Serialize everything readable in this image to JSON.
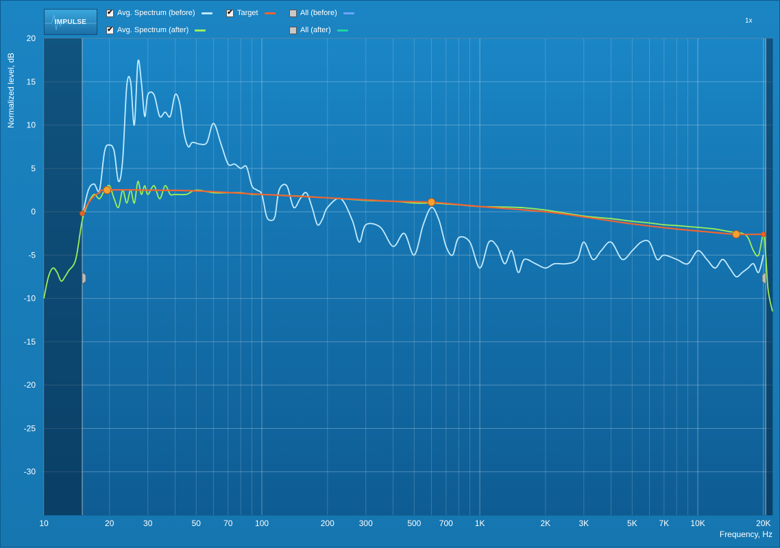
{
  "toolbar": {
    "impulse_label": "IMPULSE",
    "zoom_label": "1x",
    "legend": [
      {
        "label": "Avg. Spectrum (before)",
        "checked": true,
        "color": "#bfe9ff"
      },
      {
        "label": "Target",
        "checked": true,
        "color": "#f06432"
      },
      {
        "label": "All (before)",
        "checked": false,
        "color": "#6aa6ff"
      },
      {
        "label": "Avg. Spectrum (after)",
        "checked": true,
        "color": "#9cf05a"
      },
      {
        "label": "All (after)",
        "checked": false,
        "color": "#1fd6a0"
      }
    ]
  },
  "chart_data": {
    "type": "line",
    "xlabel": "Frequency, Hz",
    "ylabel": "Normalized level, dB",
    "x_scale": "log",
    "xlim": [
      10,
      22000
    ],
    "ylim": [
      -35,
      20
    ],
    "grid": true,
    "x_ticks": [
      {
        "value": 10,
        "label": "10"
      },
      {
        "value": 20,
        "label": "20"
      },
      {
        "value": 30,
        "label": "30"
      },
      {
        "value": 50,
        "label": "50"
      },
      {
        "value": 70,
        "label": "70"
      },
      {
        "value": 100,
        "label": "100"
      },
      {
        "value": 200,
        "label": "200"
      },
      {
        "value": 300,
        "label": "300"
      },
      {
        "value": 500,
        "label": "500"
      },
      {
        "value": 700,
        "label": "700"
      },
      {
        "value": 1000,
        "label": "1K"
      },
      {
        "value": 2000,
        "label": "2K"
      },
      {
        "value": 3000,
        "label": "3K"
      },
      {
        "value": 5000,
        "label": "5K"
      },
      {
        "value": 7000,
        "label": "7K"
      },
      {
        "value": 10000,
        "label": "10K"
      },
      {
        "value": 20000,
        "label": "20K"
      }
    ],
    "y_ticks": [
      20,
      15,
      10,
      5,
      0,
      -5,
      -10,
      -15,
      -20,
      -25,
      -30
    ],
    "excluded_band_low": [
      10,
      15
    ],
    "excluded_band_high_hz": 20500,
    "series": [
      {
        "name": "Avg. Spectrum (before)",
        "color": "#c4ecff",
        "points": [
          [
            15,
            -0.5
          ],
          [
            16,
            2.5
          ],
          [
            17,
            3.2
          ],
          [
            18,
            2.5
          ],
          [
            19,
            7.0
          ],
          [
            20,
            7.7
          ],
          [
            21,
            7.0
          ],
          [
            22,
            3.5
          ],
          [
            23,
            6.0
          ],
          [
            24,
            14.5
          ],
          [
            25,
            15.0
          ],
          [
            26,
            10.0
          ],
          [
            27,
            17.3
          ],
          [
            28,
            15.0
          ],
          [
            29,
            11.0
          ],
          [
            30,
            13.5
          ],
          [
            32,
            13.5
          ],
          [
            34,
            11.0
          ],
          [
            36,
            11.5
          ],
          [
            38,
            11.0
          ],
          [
            40,
            13.5
          ],
          [
            42,
            12.5
          ],
          [
            44,
            9.0
          ],
          [
            46,
            7.5
          ],
          [
            48,
            8.0
          ],
          [
            52,
            7.8
          ],
          [
            56,
            8.0
          ],
          [
            60,
            10.2
          ],
          [
            65,
            7.8
          ],
          [
            70,
            5.5
          ],
          [
            75,
            5.5
          ],
          [
            80,
            5.0
          ],
          [
            85,
            5.2
          ],
          [
            90,
            3.0
          ],
          [
            95,
            2.5
          ],
          [
            100,
            2.0
          ],
          [
            105,
            -0.5
          ],
          [
            110,
            -1.0
          ],
          [
            115,
            -0.5
          ],
          [
            120,
            2.5
          ],
          [
            130,
            3.0
          ],
          [
            140,
            0.5
          ],
          [
            150,
            1.5
          ],
          [
            160,
            2.2
          ],
          [
            170,
            0.5
          ],
          [
            180,
            -1.5
          ],
          [
            190,
            -0.8
          ],
          [
            200,
            0.5
          ],
          [
            230,
            1.5
          ],
          [
            260,
            -1.0
          ],
          [
            280,
            -3.5
          ],
          [
            300,
            -1.5
          ],
          [
            350,
            -1.8
          ],
          [
            400,
            -4.0
          ],
          [
            450,
            -2.5
          ],
          [
            500,
            -5.0
          ],
          [
            550,
            -1.5
          ],
          [
            600,
            0.5
          ],
          [
            650,
            -1.0
          ],
          [
            700,
            -4.0
          ],
          [
            750,
            -5.0
          ],
          [
            800,
            -3.0
          ],
          [
            900,
            -3.5
          ],
          [
            1000,
            -6.5
          ],
          [
            1100,
            -3.5
          ],
          [
            1200,
            -4.0
          ],
          [
            1300,
            -6.0
          ],
          [
            1400,
            -4.5
          ],
          [
            1500,
            -7.0
          ],
          [
            1600,
            -5.5
          ],
          [
            1800,
            -6.0
          ],
          [
            2000,
            -6.5
          ],
          [
            2200,
            -6.0
          ],
          [
            2500,
            -6.0
          ],
          [
            2800,
            -5.5
          ],
          [
            3000,
            -3.5
          ],
          [
            3300,
            -5.5
          ],
          [
            3600,
            -4.5
          ],
          [
            4000,
            -3.5
          ],
          [
            4500,
            -5.5
          ],
          [
            5000,
            -4.5
          ],
          [
            5500,
            -3.5
          ],
          [
            6000,
            -3.5
          ],
          [
            6500,
            -5.5
          ],
          [
            7000,
            -5.0
          ],
          [
            8000,
            -5.5
          ],
          [
            9000,
            -6.0
          ],
          [
            10000,
            -4.5
          ],
          [
            11000,
            -5.5
          ],
          [
            12000,
            -6.5
          ],
          [
            13000,
            -5.5
          ],
          [
            14000,
            -6.5
          ],
          [
            15000,
            -7.5
          ],
          [
            16000,
            -7.0
          ],
          [
            17000,
            -6.5
          ],
          [
            18000,
            -6.0
          ],
          [
            19000,
            -7.0
          ],
          [
            20000,
            -5.0
          ]
        ]
      },
      {
        "name": "Avg. Spectrum (after)",
        "color": "#9cf05a",
        "points": [
          [
            10,
            -10.0
          ],
          [
            10.5,
            -7.5
          ],
          [
            11,
            -6.5
          ],
          [
            11.5,
            -7.0
          ],
          [
            12,
            -8.0
          ],
          [
            12.5,
            -7.5
          ],
          [
            13,
            -6.8
          ],
          [
            14,
            -5.5
          ],
          [
            15,
            -1.0
          ],
          [
            16,
            1.0
          ],
          [
            17,
            2.0
          ],
          [
            18,
            1.5
          ],
          [
            19,
            2.5
          ],
          [
            20,
            3.0
          ],
          [
            21,
            1.5
          ],
          [
            22,
            0.5
          ],
          [
            23,
            2.5
          ],
          [
            24,
            1.0
          ],
          [
            25,
            2.5
          ],
          [
            26,
            1.0
          ],
          [
            27,
            3.5
          ],
          [
            28,
            2.0
          ],
          [
            29,
            3.0
          ],
          [
            30,
            2.0
          ],
          [
            32,
            3.0
          ],
          [
            34,
            1.5
          ],
          [
            36,
            3.0
          ],
          [
            38,
            2.0
          ],
          [
            40,
            2.0
          ],
          [
            45,
            2.0
          ],
          [
            50,
            2.5
          ],
          [
            60,
            2.2
          ],
          [
            70,
            2.2
          ],
          [
            80,
            2.2
          ],
          [
            90,
            2.0
          ],
          [
            100,
            2.0
          ],
          [
            150,
            1.8
          ],
          [
            200,
            1.6
          ],
          [
            300,
            1.3
          ],
          [
            400,
            1.2
          ],
          [
            500,
            1.0
          ],
          [
            600,
            1.0
          ],
          [
            700,
            0.9
          ],
          [
            800,
            0.8
          ],
          [
            1000,
            0.6
          ],
          [
            1500,
            0.5
          ],
          [
            2000,
            0.2
          ],
          [
            3000,
            -0.5
          ],
          [
            4000,
            -0.8
          ],
          [
            5000,
            -1.1
          ],
          [
            6000,
            -1.3
          ],
          [
            7000,
            -1.5
          ],
          [
            8000,
            -1.6
          ],
          [
            10000,
            -1.8
          ],
          [
            12000,
            -2.0
          ],
          [
            14000,
            -2.3
          ],
          [
            16000,
            -2.5
          ],
          [
            17000,
            -3.0
          ],
          [
            18000,
            -4.5
          ],
          [
            19000,
            -5.0
          ],
          [
            20000,
            -2.5
          ],
          [
            20500,
            -5.0
          ],
          [
            21000,
            -9.0
          ],
          [
            22000,
            -11.5
          ]
        ]
      },
      {
        "name": "Target",
        "color": "#f06432",
        "points": [
          [
            15,
            -0.2
          ],
          [
            16,
            1.0
          ],
          [
            17,
            1.8
          ],
          [
            18,
            2.2
          ],
          [
            19,
            2.5
          ],
          [
            30,
            2.5
          ],
          [
            50,
            2.4
          ],
          [
            100,
            2.0
          ],
          [
            200,
            1.6
          ],
          [
            400,
            1.2
          ],
          [
            600,
            1.1
          ],
          [
            1000,
            0.6
          ],
          [
            2000,
            0.0
          ],
          [
            3000,
            -0.6
          ],
          [
            5000,
            -1.4
          ],
          [
            8000,
            -2.0
          ],
          [
            12000,
            -2.4
          ],
          [
            15000,
            -2.6
          ],
          [
            20000,
            -2.6
          ]
        ]
      }
    ],
    "control_points": [
      [
        15,
        -0.2
      ],
      [
        19.5,
        2.5
      ],
      [
        600,
        1.1
      ],
      [
        15000,
        -2.6
      ],
      [
        20000,
        -2.6
      ]
    ]
  }
}
